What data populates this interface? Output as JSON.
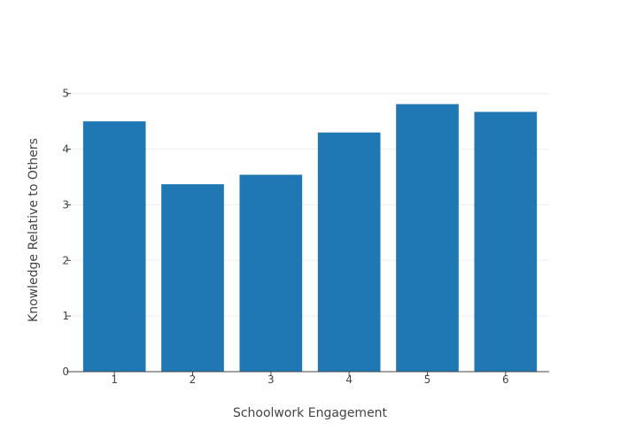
{
  "chart_data": {
    "type": "bar",
    "title": "",
    "xlabel": "Schoolwork Engagement",
    "ylabel": "Knowledge Relative to Others",
    "categories": [
      "1",
      "2",
      "3",
      "4",
      "5",
      "6"
    ],
    "values": [
      4.5,
      3.37,
      3.54,
      4.3,
      4.81,
      4.67
    ],
    "yticks": [
      "0",
      "1",
      "2",
      "3",
      "4",
      "5"
    ],
    "ylim": [
      0,
      5.25
    ],
    "grid": true,
    "legend": "none",
    "bar_color": "#1f77b4",
    "grid_color": "#eeeeee",
    "axis_color": "#444444"
  }
}
